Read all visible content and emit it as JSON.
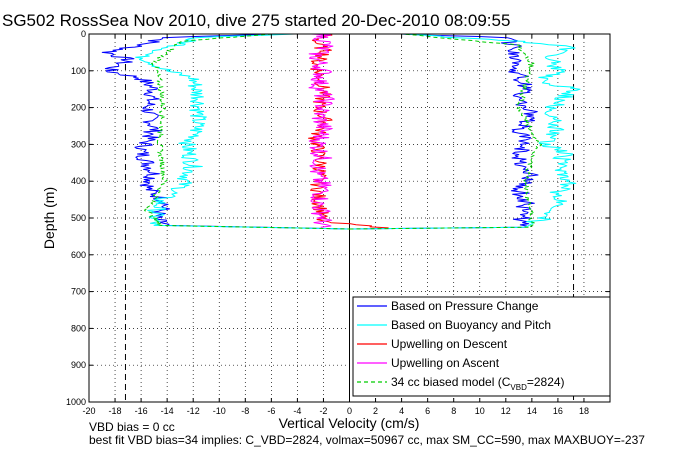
{
  "chart_data": {
    "type": "line",
    "title": "SG502 RossSea Nov 2010, dive 275 started 20-Dec-2010 08:09:55",
    "xlabel": "Vertical Velocity (cm/s)",
    "ylabel": "Depth (m)",
    "xlim": [
      -20,
      20
    ],
    "ylim": [
      1000,
      0
    ],
    "y_reversed": true,
    "grid": true,
    "grid_style": "dotted",
    "x_ticks": [
      "-20",
      "-18",
      "-16",
      "-14",
      "-12",
      "-10",
      "-8",
      "-6",
      "-4",
      "-2",
      "0",
      "2",
      "4",
      "6",
      "8",
      "10",
      "12",
      "14",
      "16",
      "18"
    ],
    "y_ticks": [
      "0",
      "100",
      "200",
      "300",
      "400",
      "500",
      "600",
      "700",
      "800",
      "900",
      "1000"
    ],
    "reference_lines": [
      {
        "x": -17.2,
        "style": "dashed",
        "color": "#000000"
      },
      {
        "x": 17.2,
        "style": "dashed",
        "color": "#000000"
      },
      {
        "x": 0,
        "style": "solid",
        "color": "#000000"
      }
    ],
    "legend_position": "bottom-right",
    "legend": [
      {
        "label": "Based on Pressure Change",
        "color": "#0000ff",
        "style": "solid"
      },
      {
        "label": "Based on Buoyancy and Pitch",
        "color": "#00ffff",
        "style": "solid"
      },
      {
        "label": "Upwelling on Descent",
        "color": "#ff0000",
        "style": "solid"
      },
      {
        "label": "Upwelling on Ascent",
        "color": "#ff00ff",
        "style": "solid"
      },
      {
        "label_prefix": "34 cc biased model (C",
        "label_sub": "VBD",
        "label_suffix": "=2824)",
        "color": "#00cc00",
        "style": "dashed"
      }
    ],
    "series": [
      {
        "name": "Based on Pressure Change",
        "color": "#0000ff",
        "descent": [
          [
            -6,
            0
          ],
          [
            -14,
            10
          ],
          [
            -16,
            30
          ],
          [
            -18.5,
            50
          ],
          [
            -17,
            70
          ],
          [
            -18.6,
            100
          ],
          [
            -16,
            120
          ],
          [
            -15,
            150
          ],
          [
            -15.5,
            200
          ],
          [
            -15,
            260
          ],
          [
            -16,
            320
          ],
          [
            -15,
            380
          ],
          [
            -15.5,
            420
          ],
          [
            -14,
            460
          ],
          [
            -15,
            500
          ],
          [
            -14,
            520
          ],
          [
            0,
            530
          ]
        ],
        "ascent": [
          [
            0,
            530
          ],
          [
            13,
            525
          ],
          [
            13.2,
            500
          ],
          [
            13.5,
            460
          ],
          [
            13,
            420
          ],
          [
            14,
            380
          ],
          [
            13,
            340
          ],
          [
            13.5,
            300
          ],
          [
            13,
            260
          ],
          [
            14,
            220
          ],
          [
            13,
            180
          ],
          [
            13.5,
            140
          ],
          [
            12.8,
            100
          ],
          [
            13,
            60
          ],
          [
            12.5,
            30
          ],
          [
            12,
            10
          ],
          [
            4,
            0
          ]
        ]
      },
      {
        "name": "Based on Buoyancy and Pitch",
        "color": "#00ffff",
        "descent": [
          [
            -4,
            0
          ],
          [
            -12,
            10
          ],
          [
            -13,
            30
          ],
          [
            -16,
            60
          ],
          [
            -14,
            100
          ],
          [
            -12,
            120
          ],
          [
            -11.5,
            180
          ],
          [
            -11.8,
            280
          ],
          [
            -12.5,
            300
          ],
          [
            -12,
            360
          ],
          [
            -13,
            420
          ],
          [
            -14.5,
            450
          ],
          [
            -15,
            500
          ],
          [
            -15,
            520
          ],
          [
            0,
            530
          ]
        ],
        "ascent": [
          [
            0,
            530
          ],
          [
            13,
            525
          ],
          [
            15,
            500
          ],
          [
            16.5,
            460
          ],
          [
            16,
            430
          ],
          [
            17,
            400
          ],
          [
            16,
            370
          ],
          [
            16.5,
            320
          ],
          [
            15,
            300
          ],
          [
            16,
            260
          ],
          [
            15.5,
            220
          ],
          [
            16,
            180
          ],
          [
            17.5,
            150
          ],
          [
            14.5,
            130
          ],
          [
            16,
            100
          ],
          [
            15.5,
            60
          ],
          [
            17,
            35
          ],
          [
            13,
            20
          ],
          [
            4,
            0
          ]
        ]
      },
      {
        "name": "Upwelling on Descent",
        "color": "#ff0000",
        "profile": [
          [
            -1.6,
            0
          ],
          [
            -2.6,
            20
          ],
          [
            -1.8,
            50
          ],
          [
            -2.6,
            80
          ],
          [
            -2.2,
            120
          ],
          [
            -2,
            160
          ],
          [
            -2.4,
            200
          ],
          [
            -1.8,
            240
          ],
          [
            -2.6,
            280
          ],
          [
            -2.4,
            320
          ],
          [
            -2.2,
            360
          ],
          [
            -2.4,
            400
          ],
          [
            -2.4,
            440
          ],
          [
            -2.2,
            480
          ],
          [
            -2.2,
            510
          ],
          [
            3,
            527
          ]
        ]
      },
      {
        "name": "Upwelling on Ascent",
        "color": "#ff00ff",
        "profile": [
          [
            -2.2,
            0
          ],
          [
            -1.8,
            30
          ],
          [
            -2.6,
            60
          ],
          [
            -2,
            100
          ],
          [
            -2.4,
            140
          ],
          [
            -1.9,
            180
          ],
          [
            -2.3,
            220
          ],
          [
            -2,
            260
          ],
          [
            -2.4,
            300
          ],
          [
            -2.1,
            340
          ],
          [
            -2.6,
            380
          ],
          [
            -2,
            420
          ],
          [
            -2.4,
            460
          ],
          [
            -2,
            500
          ],
          [
            -2.2,
            525
          ]
        ]
      },
      {
        "name": "34 cc biased model (CVBD=2824)",
        "color": "#00cc00",
        "dashed": true,
        "descent": [
          [
            -6,
            0
          ],
          [
            -13,
            20
          ],
          [
            -15,
            80
          ],
          [
            -14.5,
            140
          ],
          [
            -14.3,
            200
          ],
          [
            -14.6,
            300
          ],
          [
            -14.2,
            400
          ],
          [
            -15.5,
            480
          ],
          [
            -14.5,
            520
          ],
          [
            0,
            530
          ]
        ],
        "ascent": [
          [
            0,
            530
          ],
          [
            14,
            525
          ],
          [
            14,
            480
          ],
          [
            13.5,
            420
          ],
          [
            13.8,
            360
          ],
          [
            14.5,
            300
          ],
          [
            13,
            200
          ],
          [
            13.5,
            140
          ],
          [
            14,
            80
          ],
          [
            13,
            30
          ],
          [
            4,
            0
          ]
        ]
      }
    ]
  },
  "footer": {
    "line1": "VBD bias = 0 cc",
    "line2": "best fit VBD bias=34 implies: C_VBD=2824, volmax=50967 cc, max SM_CC=590, max MAXBUOY=-237"
  }
}
